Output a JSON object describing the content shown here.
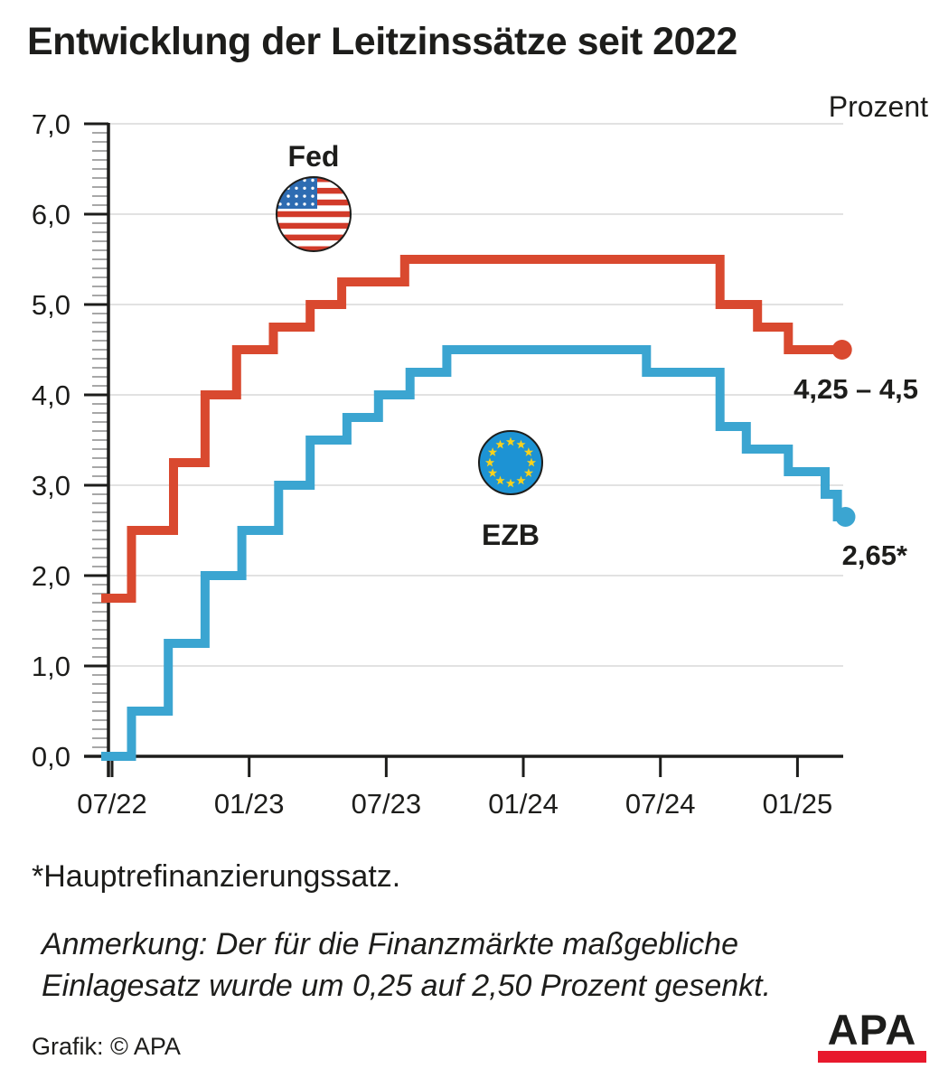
{
  "unit_label": "Prozent",
  "footnote": "*Hauptrefinanzierungssatz.",
  "note_line1": "Anmerkung: Der für die Finanzmärkte maßgebliche",
  "note_line2": "Einlagesatz wurde um 0,25 auf 2,50 Prozent gesenkt.",
  "credit": "Grafik: © APA",
  "logo_text": "APA",
  "colors": {
    "fed_line": "#d9492f",
    "ezb_line": "#3ba5d1",
    "eu_flag_blue": "#1d93d4",
    "eu_star_yellow": "#f8d21c",
    "us_canton_blue": "#2e6cb2",
    "us_stripe_red": "#d23b2a",
    "grid": "#d8d8d8",
    "axis": "#1d1d1b",
    "minor_tick": "#8a8a8a",
    "logo_red": "#e8192c"
  },
  "chart_data": {
    "type": "line",
    "step": true,
    "title": "Entwicklung der Leitzinssätze seit 2022",
    "xlabel": "",
    "ylabel": "Prozent",
    "ylim": [
      0,
      7
    ],
    "y_major_step": 1.0,
    "y_minor_step": 0.1,
    "grid": "horizontal",
    "legend_position": "inline-flags",
    "x_range_months_from_07_2022": [
      0,
      32.3
    ],
    "y_ticks": [
      {
        "v": 7,
        "label": "7,0"
      },
      {
        "v": 6,
        "label": "6,0"
      },
      {
        "v": 5,
        "label": "5,0"
      },
      {
        "v": 4,
        "label": "4,0"
      },
      {
        "v": 3,
        "label": "3,0"
      },
      {
        "v": 2,
        "label": "2,0"
      },
      {
        "v": 1,
        "label": "1,0"
      },
      {
        "v": 0,
        "label": "0,0"
      }
    ],
    "x_ticks": [
      {
        "t": 0,
        "label": "07/22"
      },
      {
        "t": 6,
        "label": "01/23"
      },
      {
        "t": 12,
        "label": "07/23"
      },
      {
        "t": 18,
        "label": "01/24"
      },
      {
        "t": 24,
        "label": "07/24"
      },
      {
        "t": 30,
        "label": "01/25"
      }
    ],
    "series": [
      {
        "name": "Fed",
        "label": "Fed",
        "flag": "us",
        "color": "#d9492f",
        "end_label": "4,25 – 4,5",
        "start": {
          "date": "07/22",
          "t": 0,
          "value": 1.75
        },
        "changes": [
          {
            "date": "07/22",
            "t": 0.85,
            "value": 2.5
          },
          {
            "date": "09/22",
            "t": 2.69,
            "value": 3.25
          },
          {
            "date": "11/22",
            "t": 4.07,
            "value": 4.0
          },
          {
            "date": "12/22",
            "t": 5.45,
            "value": 4.5
          },
          {
            "date": "02/23",
            "t": 7.06,
            "value": 4.75
          },
          {
            "date": "03/23",
            "t": 8.67,
            "value": 5.0
          },
          {
            "date": "05/23",
            "t": 10.05,
            "value": 5.25
          },
          {
            "date": "07/23",
            "t": 12.81,
            "value": 5.5
          },
          {
            "date": "09/24",
            "t": 26.61,
            "value": 5.0
          },
          {
            "date": "11/24",
            "t": 28.25,
            "value": 4.75
          },
          {
            "date": "12/24",
            "t": 29.6,
            "value": 4.5
          }
        ],
        "end": {
          "t": 31.95,
          "value": 4.5
        }
      },
      {
        "name": "EZB",
        "label": "EZB",
        "flag": "eu",
        "color": "#3ba5d1",
        "end_label": "2,65*",
        "start": {
          "date": "07/22",
          "t": 0,
          "value": 0.0
        },
        "changes": [
          {
            "date": "07/22",
            "t": 0.85,
            "value": 0.5
          },
          {
            "date": "09/22",
            "t": 2.46,
            "value": 1.25
          },
          {
            "date": "11/22",
            "t": 4.07,
            "value": 2.0
          },
          {
            "date": "12/22",
            "t": 5.68,
            "value": 2.5
          },
          {
            "date": "02/23",
            "t": 7.29,
            "value": 3.0
          },
          {
            "date": "03/23",
            "t": 8.67,
            "value": 3.5
          },
          {
            "date": "05/23",
            "t": 10.28,
            "value": 3.75
          },
          {
            "date": "06/23",
            "t": 11.66,
            "value": 4.0
          },
          {
            "date": "08/23",
            "t": 13.04,
            "value": 4.25
          },
          {
            "date": "09/23",
            "t": 14.65,
            "value": 4.5
          },
          {
            "date": "06/24",
            "t": 23.39,
            "value": 4.25
          },
          {
            "date": "09/24",
            "t": 26.61,
            "value": 3.65
          },
          {
            "date": "10/24",
            "t": 27.76,
            "value": 3.4
          },
          {
            "date": "12/24",
            "t": 29.6,
            "value": 3.15
          },
          {
            "date": "02/25",
            "t": 31.21,
            "value": 2.9
          },
          {
            "date": "03/25",
            "t": 31.75,
            "value": 2.65
          }
        ],
        "end": {
          "t": 32.1,
          "value": 2.65
        }
      }
    ]
  }
}
